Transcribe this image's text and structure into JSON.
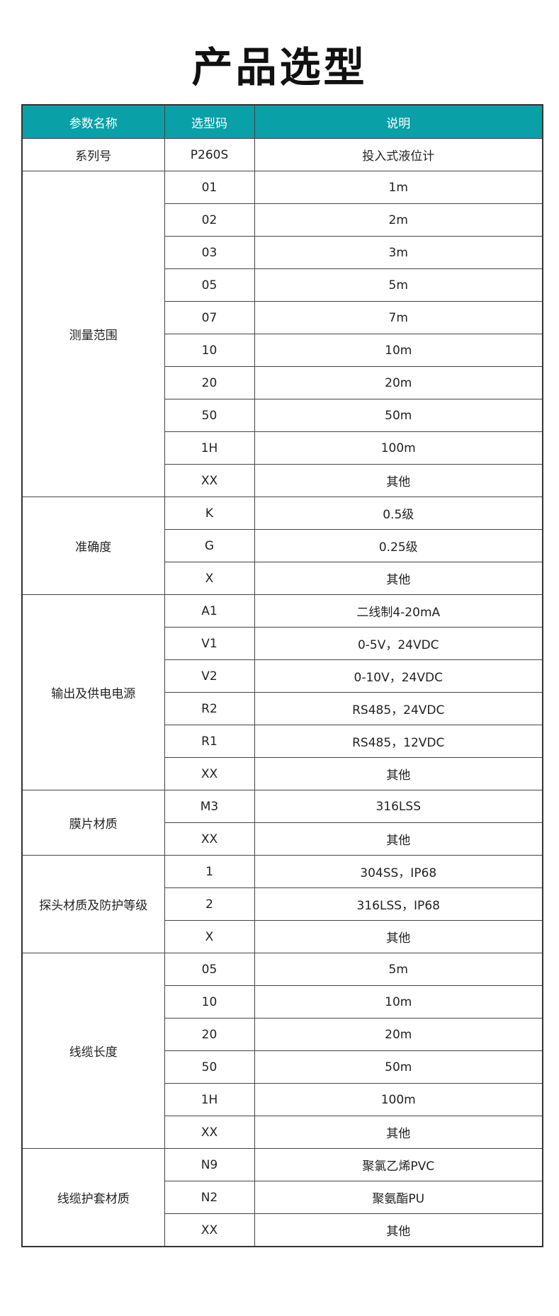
{
  "title": "产品选型",
  "header": [
    "参数名称",
    "选型码",
    "说明"
  ],
  "groups": [
    {
      "name": "系列号",
      "rows": [
        [
          "P260S",
          "投入式液位计"
        ]
      ]
    },
    {
      "name": "测量范围",
      "rows": [
        [
          "01",
          "1m"
        ],
        [
          "02",
          "2m"
        ],
        [
          "03",
          "3m"
        ],
        [
          "05",
          "5m"
        ],
        [
          "07",
          "7m"
        ],
        [
          "10",
          "10m"
        ],
        [
          "20",
          "20m"
        ],
        [
          "50",
          "50m"
        ],
        [
          "1H",
          "100m"
        ],
        [
          "XX",
          "其他"
        ]
      ]
    },
    {
      "name": "准确度",
      "rows": [
        [
          "K",
          "0.5级"
        ],
        [
          "G",
          "0.25级"
        ],
        [
          "X",
          "其他"
        ]
      ]
    },
    {
      "name": "输出及供电电源",
      "rows": [
        [
          "A1",
          "二线制4-20mA"
        ],
        [
          "V1",
          "0-5V，24VDC"
        ],
        [
          "V2",
          "0-10V，24VDC"
        ],
        [
          "R2",
          "RS485，24VDC"
        ],
        [
          "R1",
          "RS485，12VDC"
        ],
        [
          "XX",
          "其他"
        ]
      ]
    },
    {
      "name": "膜片材质",
      "rows": [
        [
          "M3",
          "316LSS"
        ],
        [
          "XX",
          "其他"
        ]
      ]
    },
    {
      "name": "探头材质及防护等级",
      "rows": [
        [
          "1",
          "304SS，IP68"
        ],
        [
          "2",
          "316LSS，IP68"
        ],
        [
          "X",
          "其他"
        ]
      ]
    },
    {
      "name": "线缆长度",
      "rows": [
        [
          "05",
          "5m"
        ],
        [
          "10",
          "10m"
        ],
        [
          "20",
          "20m"
        ],
        [
          "50",
          "50m"
        ],
        [
          "1H",
          "100m"
        ],
        [
          "XX",
          "其他"
        ]
      ]
    },
    {
      "name": "线缆护套材质",
      "rows": [
        [
          "N9",
          "聚氯乙烯PVC"
        ],
        [
          "N2",
          "聚氨酯PU"
        ],
        [
          "XX",
          "其他"
        ]
      ]
    }
  ],
  "colors": {
    "header_bg": "#0aa0a8",
    "header_text": "#ffffff"
  }
}
